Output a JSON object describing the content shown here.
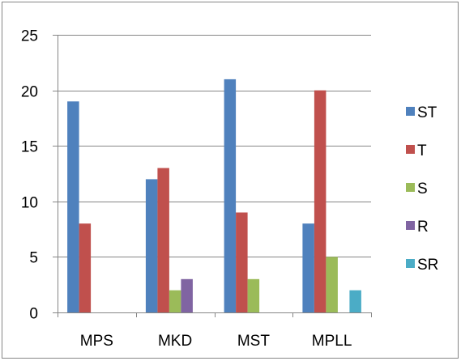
{
  "chart_data": {
    "type": "bar",
    "categories": [
      "MPS",
      "MKD",
      "MST",
      "MPLL"
    ],
    "series": [
      {
        "name": "ST",
        "values": [
          19,
          12,
          21,
          8
        ],
        "color": "#4F81BD"
      },
      {
        "name": "T",
        "values": [
          8,
          13,
          9,
          20
        ],
        "color": "#C0504D"
      },
      {
        "name": "S",
        "values": [
          0,
          2,
          3,
          5
        ],
        "color": "#9BBB59"
      },
      {
        "name": "R",
        "values": [
          0,
          3,
          0,
          0
        ],
        "color": "#8064A2"
      },
      {
        "name": "SR",
        "values": [
          0,
          0,
          0,
          2
        ],
        "color": "#4BACC6"
      }
    ],
    "ylim": [
      0,
      25
    ],
    "yticks": [
      0,
      5,
      10,
      15,
      20,
      25
    ],
    "grid": true,
    "legend_position": "right"
  }
}
